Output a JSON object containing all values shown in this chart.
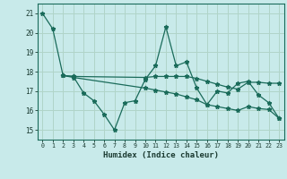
{
  "xlabel": "Humidex (Indice chaleur)",
  "bg_color": "#c8eaea",
  "grid_color": "#b0d4c8",
  "line_color": "#1a6b5a",
  "xlim": [
    -0.5,
    23.5
  ],
  "ylim": [
    14.5,
    21.5
  ],
  "yticks": [
    15,
    16,
    17,
    18,
    19,
    20,
    21
  ],
  "xticks": [
    0,
    1,
    2,
    3,
    4,
    5,
    6,
    7,
    8,
    9,
    10,
    11,
    12,
    13,
    14,
    15,
    16,
    17,
    18,
    19,
    20,
    21,
    22,
    23
  ],
  "line1_x": [
    0,
    1,
    2,
    3,
    4,
    5,
    6,
    7,
    8,
    9,
    10,
    11,
    12,
    13,
    14,
    15,
    16,
    17,
    18,
    19,
    20,
    21,
    22,
    23
  ],
  "line1_y": [
    21.0,
    20.2,
    17.8,
    17.75,
    16.9,
    16.5,
    15.8,
    15.0,
    16.4,
    16.5,
    17.6,
    18.3,
    20.3,
    18.3,
    18.5,
    17.15,
    16.3,
    17.0,
    16.9,
    17.4,
    17.5,
    16.8,
    16.4,
    15.6
  ],
  "line2_x": [
    2,
    3,
    10,
    11,
    12,
    13,
    14,
    15,
    16,
    17,
    18,
    19,
    20,
    21,
    22,
    23
  ],
  "line2_y": [
    17.8,
    17.75,
    17.7,
    17.75,
    17.75,
    17.75,
    17.75,
    17.65,
    17.5,
    17.35,
    17.2,
    17.1,
    17.45,
    17.45,
    17.4,
    17.4
  ],
  "line3_x": [
    2,
    3,
    10,
    11,
    12,
    13,
    14,
    15,
    16,
    17,
    18,
    19,
    20,
    21,
    22,
    23
  ],
  "line3_y": [
    17.8,
    17.7,
    17.15,
    17.05,
    16.95,
    16.85,
    16.7,
    16.55,
    16.3,
    16.2,
    16.1,
    16.0,
    16.2,
    16.1,
    16.05,
    15.6
  ]
}
